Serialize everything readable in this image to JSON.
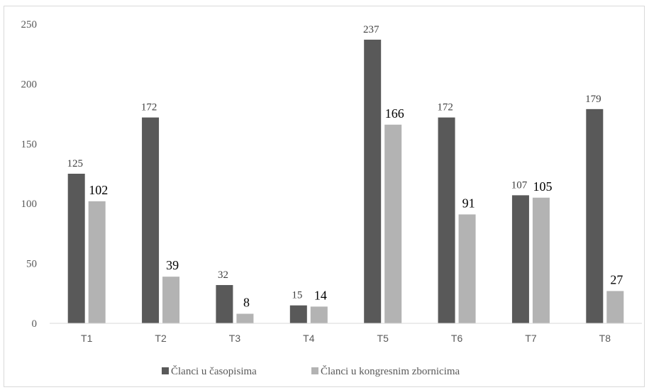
{
  "chart_data": {
    "type": "bar",
    "title": "",
    "xlabel": "",
    "ylabel": "",
    "categories": [
      "T1",
      "T2",
      "T3",
      "T4",
      "T5",
      "T6",
      "T7",
      "T8"
    ],
    "series": [
      {
        "name": "Članci u časopisima",
        "color": "#595959",
        "values": [
          125,
          172,
          32,
          15,
          237,
          172,
          107,
          179
        ]
      },
      {
        "name": "Članci u kongresnim zbornicima",
        "color": "#b3b3b3",
        "values": [
          102,
          39,
          8,
          14,
          166,
          91,
          105,
          27
        ]
      }
    ],
    "ylim": [
      0,
      250
    ],
    "yticks": [
      0,
      50,
      100,
      150,
      200,
      250
    ],
    "grid": false,
    "legend_position": "bottom"
  }
}
